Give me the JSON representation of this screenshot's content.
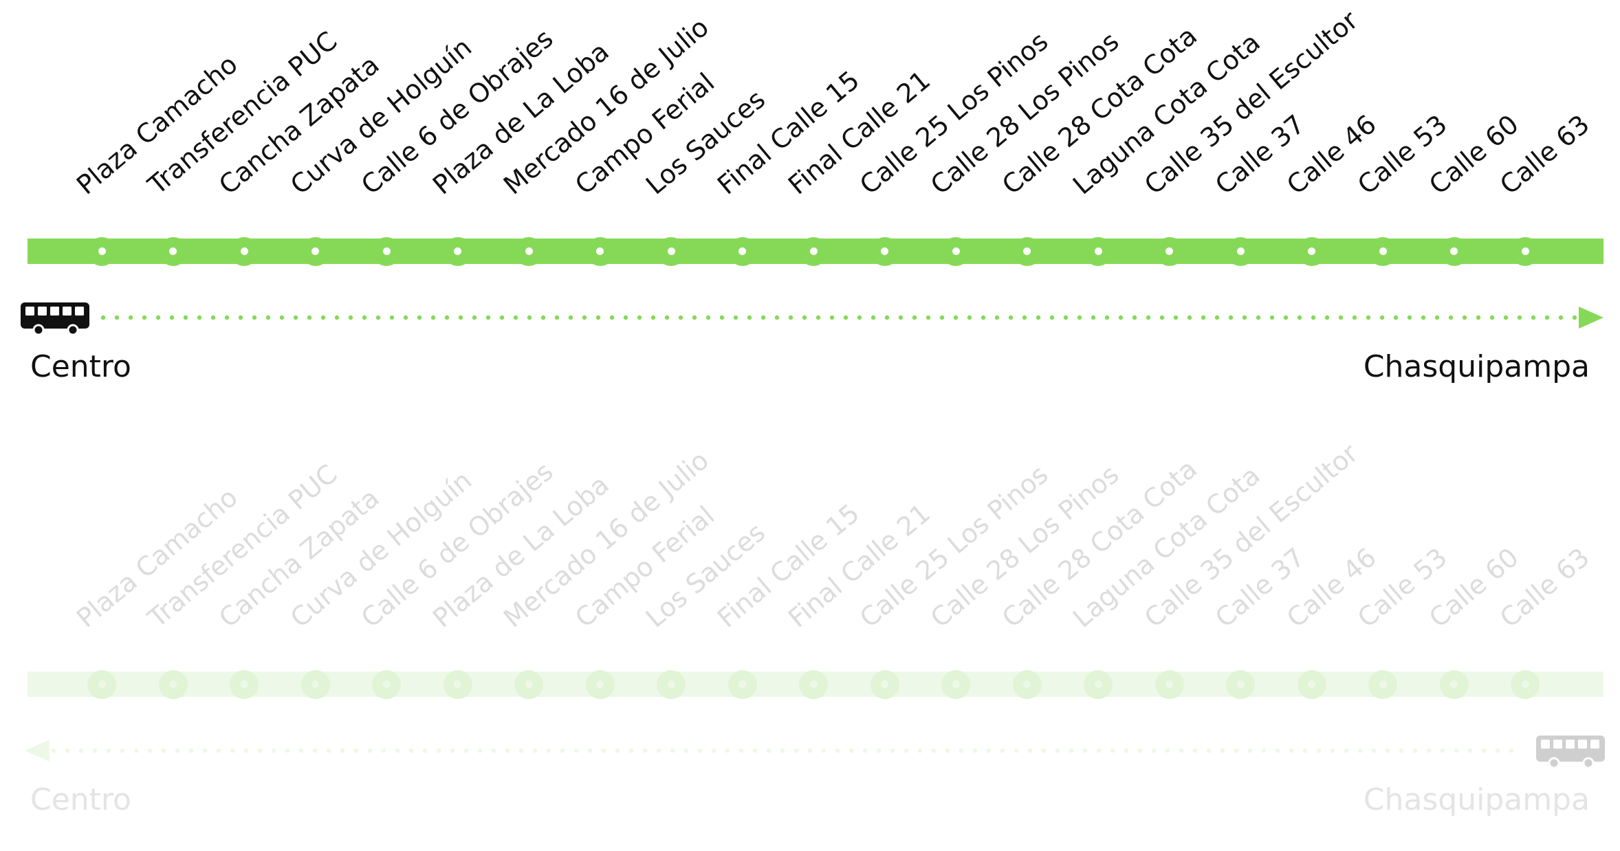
{
  "colors": {
    "line": "#86d957",
    "line_faded": "#eef8e8",
    "dot_faded": "#e1f4d6",
    "bus": "#111111",
    "bus_faded": "#cfcfcf"
  },
  "stops": [
    "Plaza Camacho",
    "Transferencia PUC",
    "Cancha Zapata",
    "Curva de Holguín",
    "Calle 6 de Obrajes",
    "Plaza de La Loba",
    "Mercado 16 de Julio",
    "Campo Ferial",
    "Los Sauces",
    "Final Calle 15",
    "Final Calle 21",
    "Calle 25 Los Pinos",
    "Calle 28 Los Pinos",
    "Calle 28 Cota Cota",
    "Laguna Cota Cota",
    "Calle 35 del Escultor",
    "Calle 37",
    "Calle 46",
    "Calle 53",
    "Calle 60",
    "Calle 63"
  ],
  "directions": [
    {
      "id": "outbound",
      "active": true,
      "from": "Centro",
      "to": "Chasquipampa",
      "bus_icon": "bus-icon",
      "arrow_icon": "arrow-right-icon"
    },
    {
      "id": "return",
      "active": false,
      "from": "Centro",
      "to": "Chasquipampa",
      "bus_icon": "bus-icon",
      "arrow_icon": "arrow-left-icon"
    }
  ]
}
